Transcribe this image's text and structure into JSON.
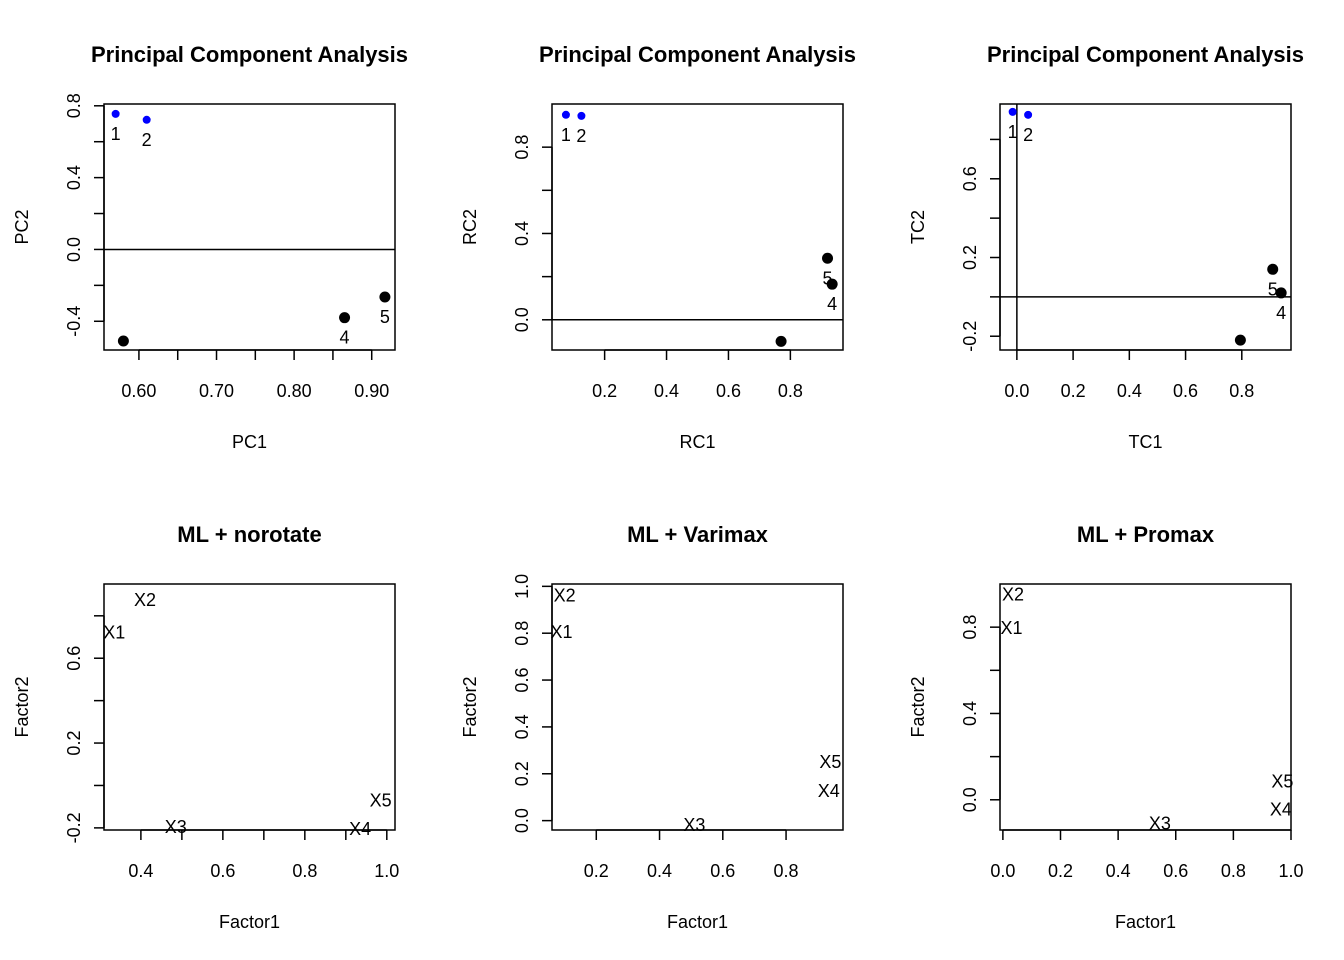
{
  "colors": {
    "highlight": "#0000ff",
    "default": "#000000"
  },
  "chart_data": [
    {
      "type": "scatter",
      "title": "Principal Component Analysis",
      "xlabel": "PC1",
      "ylabel": "PC2",
      "xlim": [
        0.555,
        0.93
      ],
      "ylim": [
        -0.56,
        0.81
      ],
      "xticks": [
        0.6,
        0.65,
        0.7,
        0.75,
        0.8,
        0.85,
        0.9
      ],
      "xtick_labels": [
        "0.60",
        "",
        "0.70",
        "",
        "0.80",
        "",
        "0.90"
      ],
      "yticks": [
        -0.4,
        -0.2,
        0.0,
        0.2,
        0.4,
        0.6,
        0.8
      ],
      "ytick_labels": [
        "-0.4",
        "",
        "0.0",
        "",
        "0.4",
        "",
        "0.8"
      ],
      "hlines": [
        0.0
      ],
      "vlines": [],
      "point_style": "points",
      "points": [
        {
          "label": "1",
          "x": 0.57,
          "y": 0.755,
          "color": "#0000ff",
          "size": "small",
          "label_pos": "below"
        },
        {
          "label": "2",
          "x": 0.61,
          "y": 0.722,
          "color": "#0000ff",
          "size": "small",
          "label_pos": "below"
        },
        {
          "label": "",
          "x": 0.58,
          "y": -0.51,
          "color": "#000000",
          "size": "large",
          "label_pos": "below"
        },
        {
          "label": "4",
          "x": 0.865,
          "y": -0.38,
          "color": "#000000",
          "size": "large",
          "label_pos": "below"
        },
        {
          "label": "5",
          "x": 0.917,
          "y": -0.265,
          "color": "#000000",
          "size": "large",
          "label_pos": "below"
        }
      ]
    },
    {
      "type": "scatter",
      "title": "Principal Component Analysis",
      "xlabel": "RC1",
      "ylabel": "RC2",
      "xlim": [
        0.03,
        0.97
      ],
      "ylim": [
        -0.14,
        1.0
      ],
      "xticks": [
        0.2,
        0.4,
        0.6,
        0.8
      ],
      "xtick_labels": [
        "0.2",
        "0.4",
        "0.6",
        "0.8"
      ],
      "yticks": [
        0.0,
        0.2,
        0.4,
        0.6,
        0.8
      ],
      "ytick_labels": [
        "0.0",
        "",
        "0.4",
        "",
        "0.8"
      ],
      "hlines": [
        0.0
      ],
      "vlines": [],
      "point_style": "points",
      "points": [
        {
          "label": "1",
          "x": 0.075,
          "y": 0.95,
          "color": "#0000ff",
          "size": "small",
          "label_pos": "below"
        },
        {
          "label": "2",
          "x": 0.125,
          "y": 0.945,
          "color": "#0000ff",
          "size": "small",
          "label_pos": "below"
        },
        {
          "label": "",
          "x": 0.77,
          "y": -0.1,
          "color": "#000000",
          "size": "large",
          "label_pos": "below"
        },
        {
          "label": "5",
          "x": 0.92,
          "y": 0.285,
          "color": "#000000",
          "size": "large",
          "label_pos": "below"
        },
        {
          "label": "4",
          "x": 0.935,
          "y": 0.165,
          "color": "#000000",
          "size": "large",
          "label_pos": "below"
        }
      ]
    },
    {
      "type": "scatter",
      "title": "Principal Component Analysis",
      "xlabel": "TC1",
      "ylabel": "TC2",
      "xlim": [
        -0.06,
        0.975
      ],
      "ylim": [
        -0.27,
        0.98
      ],
      "xticks": [
        0.0,
        0.2,
        0.4,
        0.6,
        0.8
      ],
      "xtick_labels": [
        "0.0",
        "0.2",
        "0.4",
        "0.6",
        "0.8"
      ],
      "yticks": [
        -0.2,
        0.0,
        0.2,
        0.4,
        0.6,
        0.8
      ],
      "ytick_labels": [
        "-0.2",
        "",
        "0.2",
        "",
        "0.6",
        ""
      ],
      "hlines": [
        0.0
      ],
      "vlines": [
        0.0
      ],
      "point_style": "points",
      "points": [
        {
          "label": "1",
          "x": -0.015,
          "y": 0.94,
          "color": "#0000ff",
          "size": "small",
          "label_pos": "below"
        },
        {
          "label": "2",
          "x": 0.04,
          "y": 0.925,
          "color": "#0000ff",
          "size": "small",
          "label_pos": "below"
        },
        {
          "label": "",
          "x": 0.795,
          "y": -0.22,
          "color": "#000000",
          "size": "large",
          "label_pos": "below"
        },
        {
          "label": "5",
          "x": 0.91,
          "y": 0.14,
          "color": "#000000",
          "size": "large",
          "label_pos": "below"
        },
        {
          "label": "4",
          "x": 0.94,
          "y": 0.02,
          "color": "#000000",
          "size": "large",
          "label_pos": "below"
        }
      ]
    },
    {
      "type": "scatter",
      "title": "ML + norotate",
      "xlabel": "Factor1",
      "ylabel": "Factor2",
      "xlim": [
        0.31,
        1.02
      ],
      "ylim": [
        -0.21,
        0.95
      ],
      "xticks": [
        0.3,
        0.4,
        0.5,
        0.6,
        0.7,
        0.8,
        0.9,
        1.0
      ],
      "xtick_labels": [
        "",
        "0.4",
        "",
        "0.6",
        "",
        "0.8",
        "",
        "1.0"
      ],
      "yticks": [
        -0.2,
        0.0,
        0.2,
        0.4,
        0.6,
        0.8
      ],
      "ytick_labels": [
        "-0.2",
        "",
        "0.2",
        "",
        "0.6",
        ""
      ],
      "hlines": [],
      "vlines": [],
      "point_style": "text",
      "points": [
        {
          "label": "X1",
          "x": 0.335,
          "y": 0.725
        },
        {
          "label": "X2",
          "x": 0.41,
          "y": 0.88
        },
        {
          "label": "X3",
          "x": 0.485,
          "y": -0.19
        },
        {
          "label": "X4",
          "x": 0.935,
          "y": -0.2
        },
        {
          "label": "X5",
          "x": 0.985,
          "y": -0.065
        }
      ]
    },
    {
      "type": "scatter",
      "title": "ML + Varimax",
      "xlabel": "Factor1",
      "ylabel": "Factor2",
      "xlim": [
        0.06,
        0.98
      ],
      "ylim": [
        -0.04,
        1.01
      ],
      "xticks": [
        0.2,
        0.4,
        0.6,
        0.8
      ],
      "xtick_labels": [
        "0.2",
        "0.4",
        "0.6",
        "0.8"
      ],
      "yticks": [
        0.0,
        0.2,
        0.4,
        0.6,
        0.8,
        1.0
      ],
      "ytick_labels": [
        "0.0",
        "0.2",
        "0.4",
        "0.6",
        "0.8",
        "1.0"
      ],
      "hlines": [],
      "vlines": [],
      "point_style": "text",
      "points": [
        {
          "label": "X1",
          "x": 0.09,
          "y": 0.81
        },
        {
          "label": "X2",
          "x": 0.1,
          "y": 0.965
        },
        {
          "label": "X3",
          "x": 0.51,
          "y": -0.015
        },
        {
          "label": "X4",
          "x": 0.935,
          "y": 0.13
        },
        {
          "label": "X5",
          "x": 0.94,
          "y": 0.255
        }
      ]
    },
    {
      "type": "scatter",
      "title": "ML + Promax",
      "xlabel": "Factor1",
      "ylabel": "Factor2",
      "xlim": [
        -0.01,
        1.0
      ],
      "ylim": [
        -0.14,
        1.0
      ],
      "xticks": [
        0.0,
        0.2,
        0.4,
        0.6,
        0.8,
        1.0
      ],
      "xtick_labels": [
        "0.0",
        "0.2",
        "0.4",
        "0.6",
        "0.8",
        "1.0"
      ],
      "yticks": [
        0.0,
        0.2,
        0.4,
        0.6,
        0.8
      ],
      "ytick_labels": [
        "0.0",
        "",
        "0.4",
        "",
        "0.8"
      ],
      "hlines": [],
      "vlines": [],
      "point_style": "text",
      "points": [
        {
          "label": "X1",
          "x": 0.03,
          "y": 0.8
        },
        {
          "label": "X2",
          "x": 0.035,
          "y": 0.955
        },
        {
          "label": "X3",
          "x": 0.545,
          "y": -0.105
        },
        {
          "label": "X4",
          "x": 0.965,
          "y": -0.04
        },
        {
          "label": "X5",
          "x": 0.97,
          "y": 0.09
        }
      ]
    }
  ]
}
